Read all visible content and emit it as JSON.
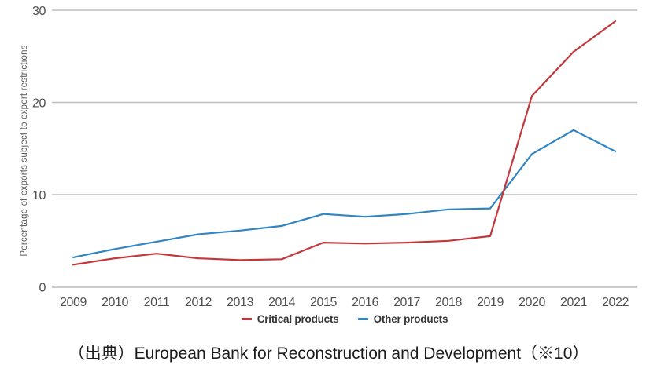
{
  "figure": {
    "caption": "（出典）European Bank for Reconstruction and Development（※10）"
  },
  "chart_data": {
    "type": "line",
    "x": [
      2009,
      2010,
      2011,
      2012,
      2013,
      2014,
      2015,
      2016,
      2017,
      2018,
      2019,
      2020,
      2021,
      2022
    ],
    "series": [
      {
        "name": "Critical products",
        "color": "#c2383c",
        "values": [
          2.4,
          3.1,
          3.6,
          3.1,
          2.9,
          3.0,
          4.8,
          4.7,
          4.8,
          5.0,
          5.5,
          20.7,
          25.5,
          28.8
        ]
      },
      {
        "name": "Other products",
        "color": "#3185c3",
        "values": [
          3.2,
          4.1,
          4.9,
          5.7,
          6.1,
          6.6,
          7.9,
          7.6,
          7.9,
          8.4,
          8.5,
          14.4,
          17.0,
          14.7
        ]
      }
    ],
    "title": "",
    "xlabel": "",
    "ylabel": "Percentage of exports subject to export restrictions",
    "ylim": [
      0,
      30
    ],
    "yticks": [
      0,
      10,
      20,
      30
    ],
    "grid": true,
    "legend_position": "bottom"
  }
}
